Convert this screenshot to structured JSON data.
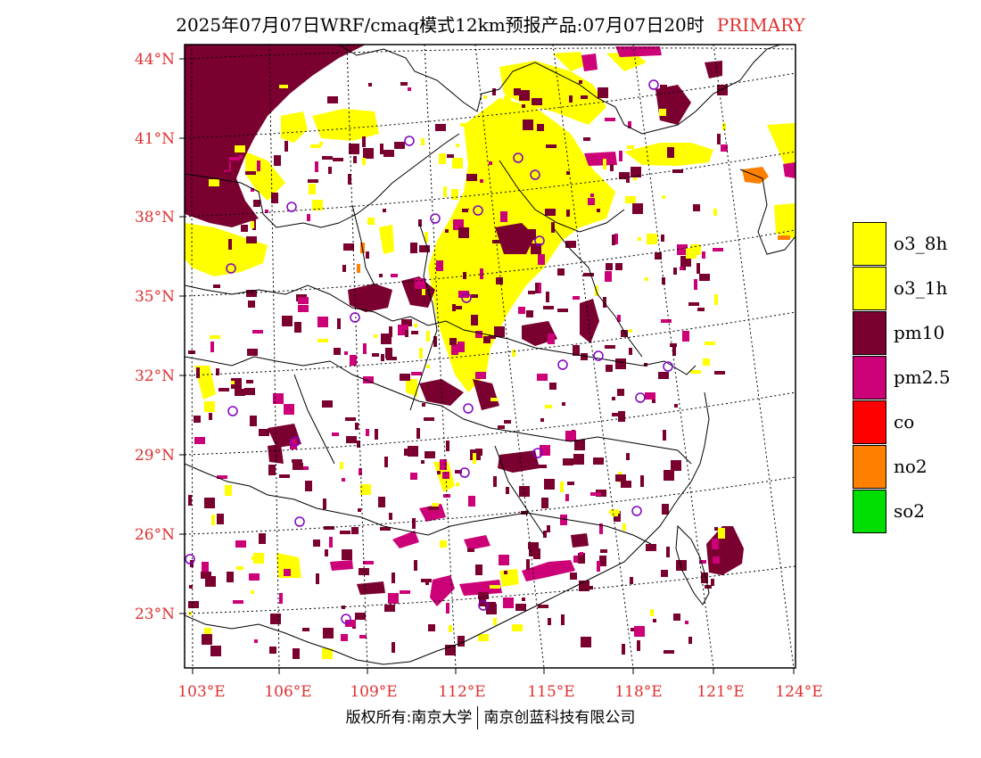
{
  "title": {
    "main": "2025年07月07日WRF/cmaq模式12km预报产品:07月07日20时",
    "tag": "PRIMARY"
  },
  "map": {
    "lat_labels": [
      "44°N",
      "41°N",
      "38°N",
      "35°N",
      "32°N",
      "29°N",
      "26°N",
      "23°N"
    ],
    "lon_labels": [
      "103°E",
      "106°E",
      "109°E",
      "112°E",
      "115°E",
      "118°E",
      "121°E",
      "124°E"
    ],
    "colors": {
      "o3_8h": "#ffff00",
      "o3_1h": "#ffff00",
      "pm10": "#7a0030",
      "pm25": "#cc0077",
      "no2": "#ff8000",
      "label": "#e03030",
      "station": "#8000c0"
    }
  },
  "legend": [
    {
      "label": "o3_8h",
      "color": "#ffff00"
    },
    {
      "label": "o3_1h",
      "color": "#ffff00"
    },
    {
      "label": "pm10",
      "color": "#7a0030"
    },
    {
      "label": "pm2.5",
      "color": "#cc0077"
    },
    {
      "label": "co",
      "color": "#ff0000"
    },
    {
      "label": "no2",
      "color": "#ff8000"
    },
    {
      "label": "so2",
      "color": "#00dd00"
    }
  ],
  "footer": {
    "left": "版权所有:南京大学",
    "right": "南京创蓝科技有限公司"
  }
}
